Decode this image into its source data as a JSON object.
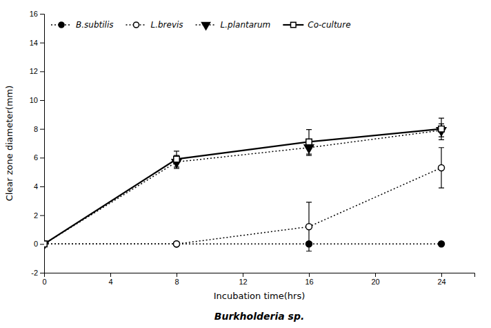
{
  "chart_data": {
    "type": "line",
    "title": "Burkholderia sp.",
    "x_label": "Incubation time(hrs)",
    "y_label": "Clear zone diameter(mm)",
    "x": [
      0,
      8,
      16,
      24
    ],
    "series": [
      {
        "name": "B.subtilis",
        "color": "#000000",
        "marker": "circle",
        "line_style": "dotted",
        "values": [
          0,
          0,
          0,
          0
        ],
        "yerr": [
          0,
          0,
          0,
          0
        ]
      },
      {
        "name": "L.brevis",
        "color": "#000000",
        "marker": "circle-open",
        "line_style": "dotted",
        "values": [
          0,
          0,
          1.2,
          5.3
        ],
        "yerr": [
          0,
          0,
          1.7,
          1.4
        ]
      },
      {
        "name": "L.plantarum",
        "color": "#000000",
        "marker": "triangle-down",
        "line_style": "dotted",
        "values": [
          0,
          5.7,
          6.7,
          7.9
        ],
        "yerr": [
          0,
          0.45,
          0.55,
          0.45
        ]
      },
      {
        "name": "Co-culture",
        "color": "#000000",
        "marker": "square-open",
        "line_style": "solid",
        "values": [
          0,
          5.9,
          7.1,
          8.0
        ],
        "yerr": [
          0,
          0.55,
          0.85,
          0.75
        ]
      }
    ],
    "xlim": [
      0,
      26
    ],
    "xticks": [
      0,
      4,
      8,
      12,
      16,
      20,
      24
    ],
    "ylim": [
      -2,
      16
    ],
    "yticks": [
      -2,
      0,
      2,
      4,
      6,
      8,
      10,
      12,
      14,
      16
    ],
    "grid": false,
    "legend": "upper-left"
  }
}
